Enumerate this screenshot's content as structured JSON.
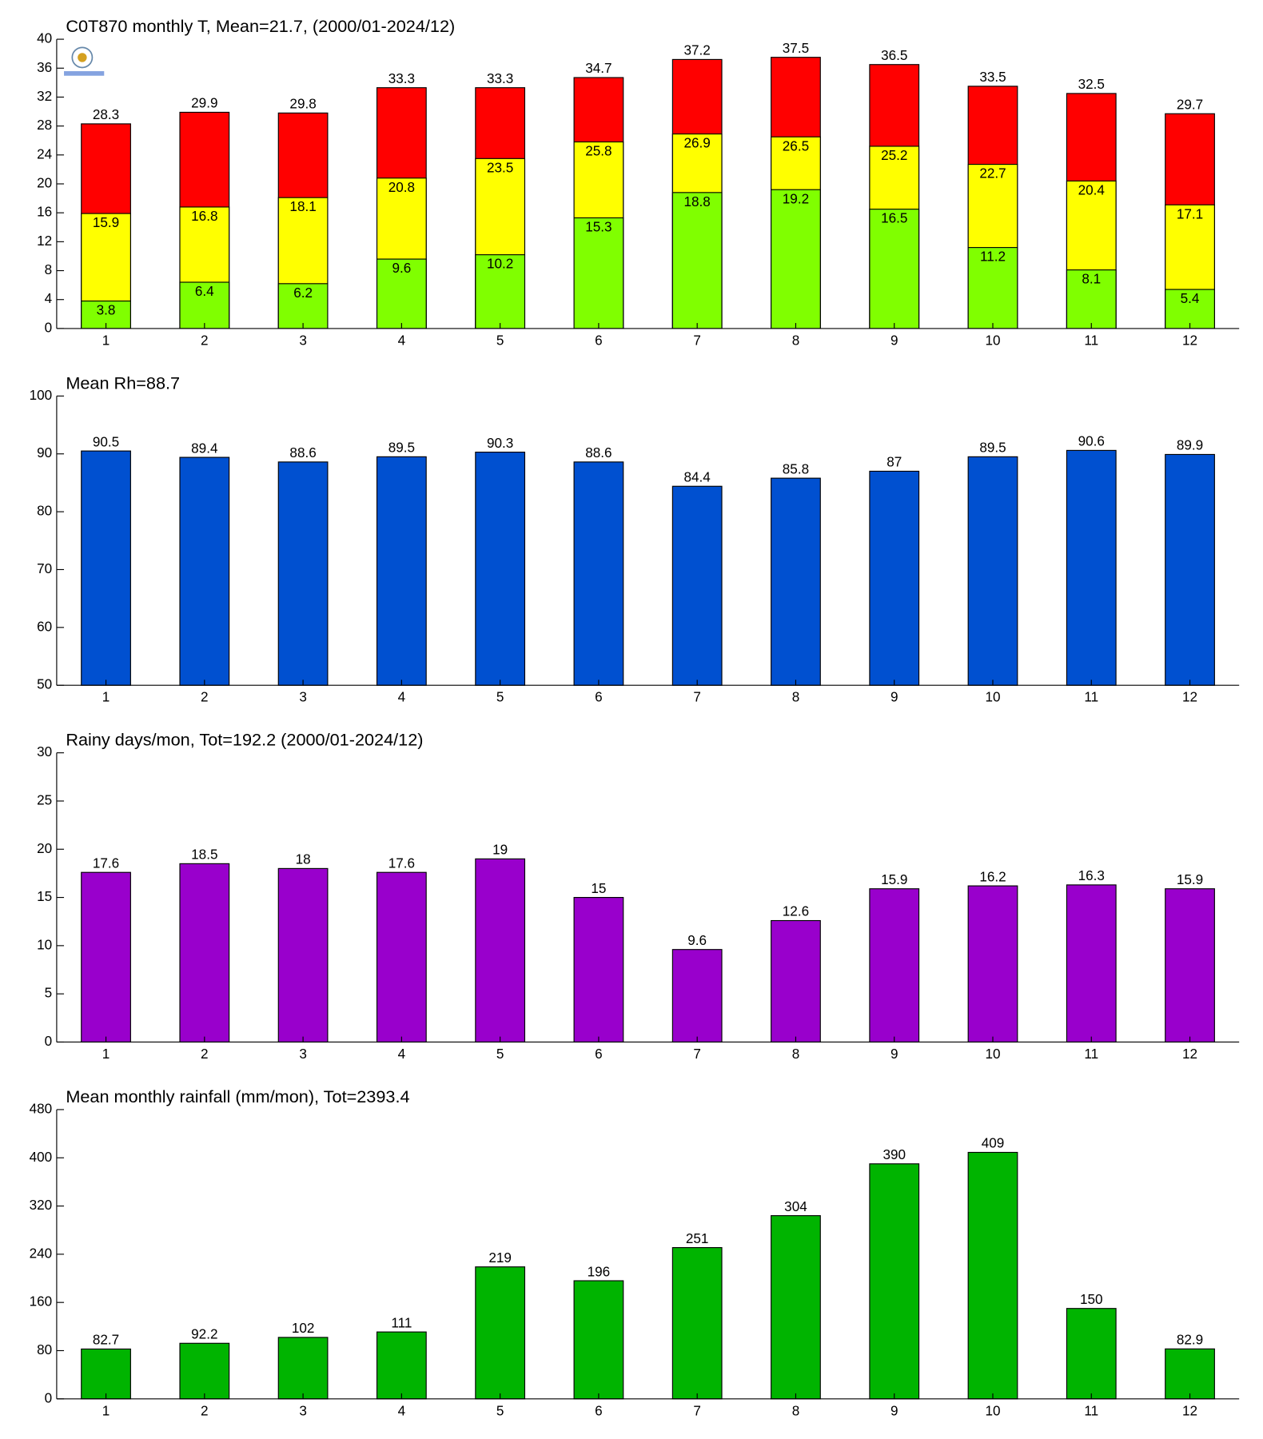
{
  "chart_data": [
    {
      "type": "bar",
      "title": "C0T870 monthly T, Mean=21.7, (2000/01-2024/12)",
      "categories": [
        "1",
        "2",
        "3",
        "4",
        "5",
        "6",
        "7",
        "8",
        "9",
        "10",
        "11",
        "12"
      ],
      "series": [
        {
          "color": "#ff0000",
          "values": [
            28.3,
            29.9,
            29.8,
            33.3,
            33.3,
            34.7,
            37.2,
            37.5,
            36.5,
            33.5,
            32.5,
            29.7
          ]
        },
        {
          "color": "#ffff00",
          "values": [
            15.9,
            16.8,
            18.1,
            20.8,
            23.5,
            25.8,
            26.9,
            26.5,
            25.2,
            22.7,
            20.4,
            17.1
          ]
        },
        {
          "color": "#80ff00",
          "values": [
            3.8,
            6.4,
            6.2,
            9.6,
            10.2,
            15.3,
            18.8,
            19.2,
            16.5,
            11.2,
            8.1,
            5.4
          ]
        }
      ],
      "ylim": [
        0,
        40
      ],
      "yticks": [
        0,
        4,
        8,
        12,
        16,
        20,
        24,
        28,
        32,
        36,
        40
      ]
    },
    {
      "type": "bar",
      "title": "Mean Rh=88.7",
      "categories": [
        "1",
        "2",
        "3",
        "4",
        "5",
        "6",
        "7",
        "8",
        "9",
        "10",
        "11",
        "12"
      ],
      "values": [
        90.5,
        89.4,
        88.6,
        89.5,
        90.3,
        88.6,
        84.4,
        85.8,
        87,
        89.5,
        90.6,
        89.9
      ],
      "color": "#0050d0",
      "ylim": [
        50,
        100
      ],
      "yticks": [
        50,
        60,
        70,
        80,
        90,
        100
      ]
    },
    {
      "type": "bar",
      "title": "Rainy days/mon, Tot=192.2 (2000/01-2024/12)",
      "categories": [
        "1",
        "2",
        "3",
        "4",
        "5",
        "6",
        "7",
        "8",
        "9",
        "10",
        "11",
        "12"
      ],
      "values": [
        17.6,
        18.5,
        18,
        17.6,
        19,
        15,
        9.6,
        12.6,
        15.9,
        16.2,
        16.3,
        15.9
      ],
      "color": "#9900cc",
      "ylim": [
        0,
        30
      ],
      "yticks": [
        0,
        5,
        10,
        15,
        20,
        25,
        30
      ]
    },
    {
      "type": "bar",
      "title": "Mean monthly rainfall (mm/mon), Tot=2393.4",
      "categories": [
        "1",
        "2",
        "3",
        "4",
        "5",
        "6",
        "7",
        "8",
        "9",
        "10",
        "11",
        "12"
      ],
      "values": [
        82.7,
        92.2,
        102,
        111,
        219,
        196,
        251,
        304,
        390,
        409,
        150,
        82.9
      ],
      "color": "#00b400",
      "ylim": [
        0,
        480
      ],
      "yticks": [
        0,
        80,
        160,
        240,
        320,
        400,
        480
      ]
    }
  ]
}
